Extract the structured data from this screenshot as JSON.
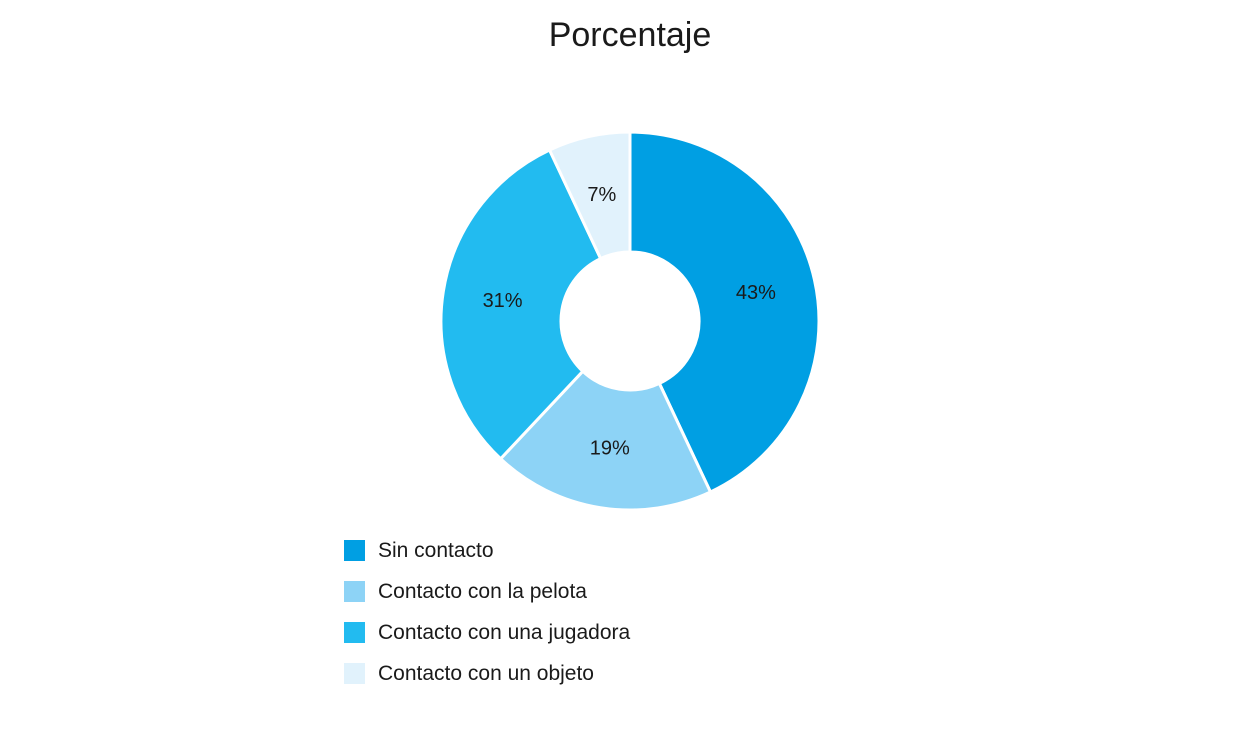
{
  "chart_data": {
    "type": "pie",
    "variant": "donut",
    "title": "Porcentaje",
    "categories": [
      "Sin contacto",
      "Contacto con la pelota",
      "Contacto con una jugadora",
      "Contacto con un objeto"
    ],
    "values": [
      43,
      19,
      31,
      7
    ],
    "labels": [
      "43%",
      "19%",
      "31%",
      "7%"
    ],
    "colors": [
      "#009fe3",
      "#8dd3f6",
      "#22bbf0",
      "#e1f2fc"
    ],
    "legend_position": "bottom-left"
  }
}
